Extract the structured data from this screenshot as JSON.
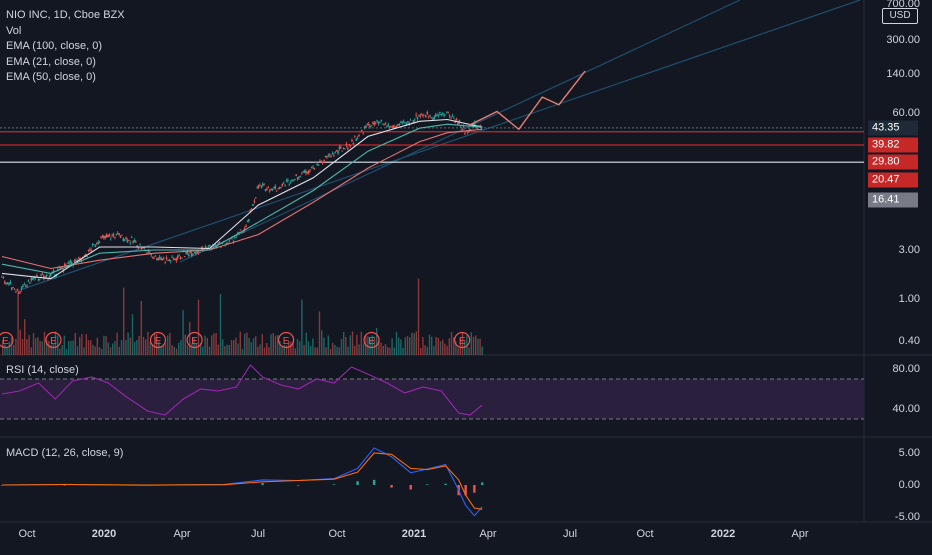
{
  "legend": {
    "symbol": "NIO INC, 1D, Cboe BZX",
    "vol": "Vol",
    "ema100": "EMA (100, close, 0)",
    "ema21": "EMA (21, close, 0)",
    "ema50": "EMA (50, close, 0)"
  },
  "currency": "USD",
  "rsi_title": "RSI (14, close)",
  "macd_title": "MACD (12, 26, close, 9)",
  "colors": {
    "bg": "#131722",
    "up": "#26a69a",
    "down": "#ef5350",
    "ema100": "#e57373",
    "ema21": "#e0e3eb",
    "ema50": "#4db6ac",
    "rsi": "#9c27b0",
    "rsi_band": "#2a1f3d",
    "channel": "#1f4e6e",
    "forecast": "#e57f6f",
    "hline_red": "#c62828",
    "hline_white": "#e0e3eb"
  },
  "chart_data": [
    {
      "type": "line",
      "title": "NIO INC, 1D, Cboe BZX",
      "ylabel": "USD",
      "yscale": "log",
      "y_ticks": [
        "700.00",
        "300.00",
        "140.00",
        "60.00",
        "3.00",
        "1.00",
        "0.40"
      ],
      "x_ticks": [
        "Oct",
        "2020",
        "Apr",
        "Jul",
        "Oct",
        "2021",
        "Apr",
        "Jul",
        "Oct",
        "2022",
        "Apr"
      ],
      "series": [
        {
          "name": "Price",
          "x": [
            "2019-09-20",
            "2019-10-10",
            "2019-10-25",
            "2019-11-15",
            "2019-12-05",
            "2019-12-20",
            "2020-01-10",
            "2020-01-31",
            "2020-02-21",
            "2020-03-13",
            "2020-03-31",
            "2020-04-20",
            "2020-05-15",
            "2020-06-05",
            "2020-06-26",
            "2020-07-10",
            "2020-07-31",
            "2020-08-21",
            "2020-09-11",
            "2020-10-02",
            "2020-10-23",
            "2020-11-13",
            "2020-11-27",
            "2020-12-11",
            "2020-12-31",
            "2021-01-11",
            "2021-01-29",
            "2021-02-12",
            "2021-02-26",
            "2021-03-05",
            "2021-03-12",
            "2021-03-24"
          ],
          "values": [
            1.6,
            1.2,
            1.6,
            1.7,
            2.2,
            2.4,
            3.8,
            4.2,
            3.5,
            2.6,
            2.4,
            2.8,
            3.2,
            3.5,
            4.8,
            12.0,
            11.5,
            14.5,
            18.5,
            24.0,
            30.0,
            46.0,
            48.0,
            44.0,
            49.0,
            58.0,
            56.0,
            60.0,
            48.0,
            39.0,
            46.0,
            43.35
          ]
        },
        {
          "name": "EMA (100, close, 0)",
          "x": [
            "2019-09-20",
            "2019-11-15",
            "2020-01-10",
            "2020-03-13",
            "2020-05-15",
            "2020-07-10",
            "2020-09-11",
            "2020-11-13",
            "2021-01-11",
            "2021-02-12",
            "2021-03-24"
          ],
          "values": [
            2.6,
            2.0,
            2.4,
            2.8,
            3.0,
            4.2,
            8.5,
            18.0,
            32.0,
            39.0,
            42.0
          ]
        },
        {
          "name": "EMA (21, close, 0)",
          "x": [
            "2019-09-20",
            "2019-11-15",
            "2020-01-10",
            "2020-03-13",
            "2020-05-15",
            "2020-07-10",
            "2020-09-11",
            "2020-11-13",
            "2021-01-11",
            "2021-02-12",
            "2021-03-24"
          ],
          "values": [
            1.8,
            1.6,
            3.2,
            3.2,
            3.1,
            8.0,
            14.5,
            36.0,
            50.0,
            52.0,
            44.0
          ]
        },
        {
          "name": "EMA (50, close, 0)",
          "x": [
            "2019-09-20",
            "2019-11-15",
            "2020-01-10",
            "2020-03-13",
            "2020-05-15",
            "2020-07-10",
            "2020-09-11",
            "2020-11-13",
            "2021-01-11",
            "2021-02-12",
            "2021-03-24"
          ],
          "values": [
            2.2,
            1.8,
            2.8,
            3.0,
            3.0,
            5.5,
            11.0,
            26.0,
            43.0,
            47.0,
            44.0
          ]
        },
        {
          "name": "Forecast",
          "x": [
            "2021-03-09",
            "2021-04-10",
            "2021-05-05",
            "2021-06-01",
            "2021-06-20",
            "2021-07-20"
          ],
          "values": [
            46.0,
            62.0,
            42.0,
            85.0,
            72.0,
            150.0
          ]
        }
      ],
      "horizontal_levels": [
        43.35,
        39.82,
        29.8,
        20.47,
        16.41
      ],
      "price_badges": [
        {
          "label": "43.35",
          "value": 43.35,
          "color": "#1e2a38"
        },
        {
          "label": "39.82",
          "value": 39.82,
          "color": "#c62828"
        },
        {
          "label": "29.80",
          "value": 29.8,
          "color": "#c62828"
        },
        {
          "label": "20.47",
          "value": 20.47,
          "color": "#c62828"
        },
        {
          "label": "16.41",
          "value": 16.41,
          "color": "#787b86"
        }
      ],
      "earnings_markers": {
        "label": "E",
        "dates": [
          "2019-09-24",
          "2019-11-18",
          "2020-03-17",
          "2020-04-28",
          "2020-08-11",
          "2020-11-17",
          "2021-03-01"
        ]
      }
    },
    {
      "type": "area",
      "title": "RSI (14, close)",
      "y_ticks": [
        "80.00",
        "40.00"
      ],
      "bands": [
        30,
        70
      ],
      "x": [
        "2019-09-20",
        "2019-10-10",
        "2019-11-01",
        "2019-11-20",
        "2019-12-10",
        "2020-01-01",
        "2020-01-20",
        "2020-02-10",
        "2020-03-05",
        "2020-03-25",
        "2020-04-15",
        "2020-05-05",
        "2020-05-25",
        "2020-06-15",
        "2020-07-01",
        "2020-07-15",
        "2020-08-05",
        "2020-08-25",
        "2020-09-15",
        "2020-10-05",
        "2020-10-25",
        "2020-11-15",
        "2020-12-05",
        "2020-12-25",
        "2021-01-15",
        "2021-02-05",
        "2021-02-25",
        "2021-03-10",
        "2021-03-24"
      ],
      "values": [
        55,
        58,
        66,
        50,
        68,
        72,
        66,
        52,
        38,
        34,
        50,
        60,
        58,
        62,
        84,
        72,
        64,
        60,
        70,
        66,
        82,
        74,
        66,
        56,
        62,
        58,
        36,
        34,
        44
      ]
    },
    {
      "type": "bar",
      "title": "MACD (12, 26, close, 9)",
      "y_ticks": [
        "5.00",
        "0.00",
        "-5.00"
      ],
      "x": [
        "2019-09-20",
        "2019-12-01",
        "2020-03-01",
        "2020-06-01",
        "2020-07-15",
        "2020-08-25",
        "2020-10-05",
        "2020-11-01",
        "2020-11-20",
        "2020-12-10",
        "2021-01-01",
        "2021-01-20",
        "2021-02-10",
        "2021-02-25",
        "2021-03-05",
        "2021-03-15",
        "2021-03-24"
      ],
      "macd": [
        0.0,
        0.1,
        -0.05,
        0.1,
        0.8,
        0.7,
        1.0,
        2.6,
        5.8,
        4.4,
        1.9,
        2.5,
        3.2,
        -0.8,
        -3.2,
        -4.8,
        -3.4
      ],
      "signal": [
        0.0,
        0.08,
        0.0,
        0.05,
        0.5,
        0.7,
        0.9,
        2.0,
        5.0,
        4.8,
        2.6,
        2.4,
        3.0,
        0.8,
        -1.6,
        -3.6,
        -3.8
      ],
      "histogram": [
        0.0,
        0.02,
        -0.05,
        0.05,
        0.3,
        0.0,
        0.1,
        0.6,
        0.8,
        -0.4,
        -0.7,
        0.1,
        0.2,
        -1.6,
        -1.6,
        -1.2,
        0.4
      ]
    }
  ]
}
